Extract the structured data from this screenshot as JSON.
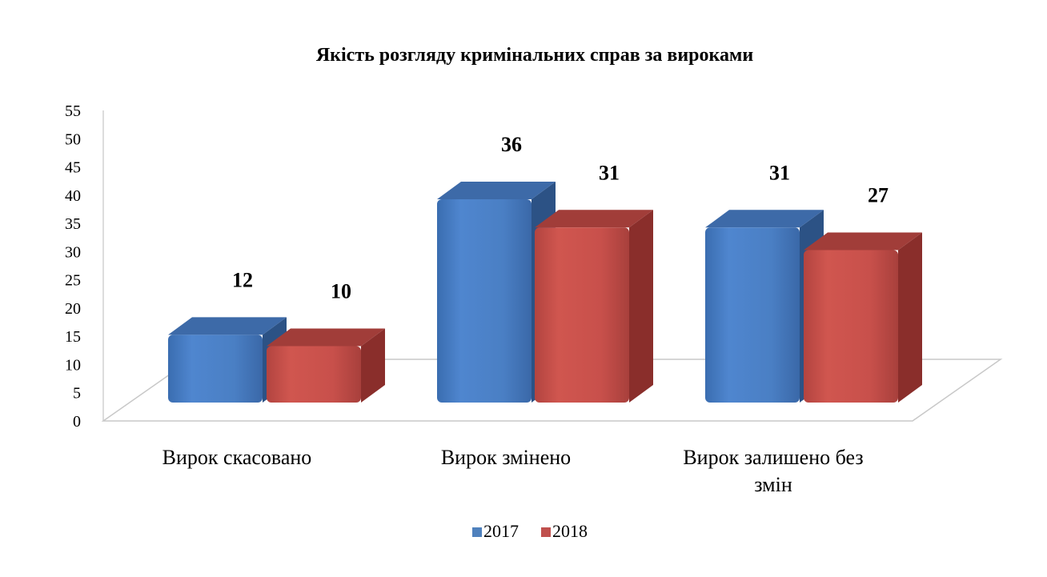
{
  "chart_data": {
    "type": "bar",
    "title": "Якість розгляду кримінальних  справ за вироками",
    "xlabel": "",
    "ylabel": "",
    "ylim": [
      0,
      55
    ],
    "yticks": [
      0,
      5,
      10,
      15,
      20,
      25,
      30,
      35,
      40,
      45,
      50,
      55
    ],
    "categories": [
      [
        "Вирок скасовано"
      ],
      [
        "Вирок змінено"
      ],
      [
        "Вирок залишено без",
        "змін"
      ]
    ],
    "series": [
      {
        "name": "2017",
        "values": [
          12,
          36,
          31
        ],
        "color": "#4F81BD"
      },
      {
        "name": "2018",
        "values": [
          10,
          31,
          27
        ],
        "color": "#C0504D"
      }
    ],
    "grid": false,
    "legend_position": "bottom",
    "style": "3d-column"
  }
}
